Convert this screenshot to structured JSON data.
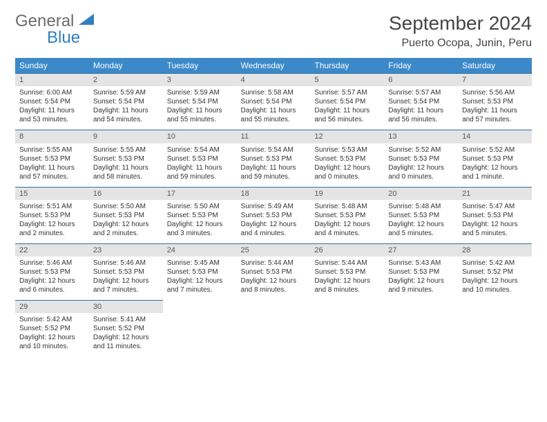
{
  "brand": {
    "line1": "General",
    "line2": "Blue"
  },
  "title": "September 2024",
  "location": "Puerto Ocopa, Junin, Peru",
  "colors": {
    "header_bg": "#3b89c9",
    "header_text": "#ffffff",
    "daynum_bg": "#e4e4e4",
    "row_divider": "#2f6fa0",
    "logo_gray": "#6b6b6b",
    "logo_blue": "#2f7fbf",
    "text": "#333333",
    "background": "#ffffff"
  },
  "typography": {
    "month_title_fontsize": 28,
    "location_fontsize": 16,
    "weekday_fontsize": 12,
    "daynum_fontsize": 11,
    "body_fontsize": 10
  },
  "weekdays": [
    "Sunday",
    "Monday",
    "Tuesday",
    "Wednesday",
    "Thursday",
    "Friday",
    "Saturday"
  ],
  "weeks": [
    [
      {
        "day": "1",
        "sunrise": "Sunrise: 6:00 AM",
        "sunset": "Sunset: 5:54 PM",
        "daylight1": "Daylight: 11 hours",
        "daylight2": "and 53 minutes."
      },
      {
        "day": "2",
        "sunrise": "Sunrise: 5:59 AM",
        "sunset": "Sunset: 5:54 PM",
        "daylight1": "Daylight: 11 hours",
        "daylight2": "and 54 minutes."
      },
      {
        "day": "3",
        "sunrise": "Sunrise: 5:59 AM",
        "sunset": "Sunset: 5:54 PM",
        "daylight1": "Daylight: 11 hours",
        "daylight2": "and 55 minutes."
      },
      {
        "day": "4",
        "sunrise": "Sunrise: 5:58 AM",
        "sunset": "Sunset: 5:54 PM",
        "daylight1": "Daylight: 11 hours",
        "daylight2": "and 55 minutes."
      },
      {
        "day": "5",
        "sunrise": "Sunrise: 5:57 AM",
        "sunset": "Sunset: 5:54 PM",
        "daylight1": "Daylight: 11 hours",
        "daylight2": "and 56 minutes."
      },
      {
        "day": "6",
        "sunrise": "Sunrise: 5:57 AM",
        "sunset": "Sunset: 5:54 PM",
        "daylight1": "Daylight: 11 hours",
        "daylight2": "and 56 minutes."
      },
      {
        "day": "7",
        "sunrise": "Sunrise: 5:56 AM",
        "sunset": "Sunset: 5:53 PM",
        "daylight1": "Daylight: 11 hours",
        "daylight2": "and 57 minutes."
      }
    ],
    [
      {
        "day": "8",
        "sunrise": "Sunrise: 5:55 AM",
        "sunset": "Sunset: 5:53 PM",
        "daylight1": "Daylight: 11 hours",
        "daylight2": "and 57 minutes."
      },
      {
        "day": "9",
        "sunrise": "Sunrise: 5:55 AM",
        "sunset": "Sunset: 5:53 PM",
        "daylight1": "Daylight: 11 hours",
        "daylight2": "and 58 minutes."
      },
      {
        "day": "10",
        "sunrise": "Sunrise: 5:54 AM",
        "sunset": "Sunset: 5:53 PM",
        "daylight1": "Daylight: 11 hours",
        "daylight2": "and 59 minutes."
      },
      {
        "day": "11",
        "sunrise": "Sunrise: 5:54 AM",
        "sunset": "Sunset: 5:53 PM",
        "daylight1": "Daylight: 11 hours",
        "daylight2": "and 59 minutes."
      },
      {
        "day": "12",
        "sunrise": "Sunrise: 5:53 AM",
        "sunset": "Sunset: 5:53 PM",
        "daylight1": "Daylight: 12 hours",
        "daylight2": "and 0 minutes."
      },
      {
        "day": "13",
        "sunrise": "Sunrise: 5:52 AM",
        "sunset": "Sunset: 5:53 PM",
        "daylight1": "Daylight: 12 hours",
        "daylight2": "and 0 minutes."
      },
      {
        "day": "14",
        "sunrise": "Sunrise: 5:52 AM",
        "sunset": "Sunset: 5:53 PM",
        "daylight1": "Daylight: 12 hours",
        "daylight2": "and 1 minute."
      }
    ],
    [
      {
        "day": "15",
        "sunrise": "Sunrise: 5:51 AM",
        "sunset": "Sunset: 5:53 PM",
        "daylight1": "Daylight: 12 hours",
        "daylight2": "and 2 minutes."
      },
      {
        "day": "16",
        "sunrise": "Sunrise: 5:50 AM",
        "sunset": "Sunset: 5:53 PM",
        "daylight1": "Daylight: 12 hours",
        "daylight2": "and 2 minutes."
      },
      {
        "day": "17",
        "sunrise": "Sunrise: 5:50 AM",
        "sunset": "Sunset: 5:53 PM",
        "daylight1": "Daylight: 12 hours",
        "daylight2": "and 3 minutes."
      },
      {
        "day": "18",
        "sunrise": "Sunrise: 5:49 AM",
        "sunset": "Sunset: 5:53 PM",
        "daylight1": "Daylight: 12 hours",
        "daylight2": "and 4 minutes."
      },
      {
        "day": "19",
        "sunrise": "Sunrise: 5:48 AM",
        "sunset": "Sunset: 5:53 PM",
        "daylight1": "Daylight: 12 hours",
        "daylight2": "and 4 minutes."
      },
      {
        "day": "20",
        "sunrise": "Sunrise: 5:48 AM",
        "sunset": "Sunset: 5:53 PM",
        "daylight1": "Daylight: 12 hours",
        "daylight2": "and 5 minutes."
      },
      {
        "day": "21",
        "sunrise": "Sunrise: 5:47 AM",
        "sunset": "Sunset: 5:53 PM",
        "daylight1": "Daylight: 12 hours",
        "daylight2": "and 5 minutes."
      }
    ],
    [
      {
        "day": "22",
        "sunrise": "Sunrise: 5:46 AM",
        "sunset": "Sunset: 5:53 PM",
        "daylight1": "Daylight: 12 hours",
        "daylight2": "and 6 minutes."
      },
      {
        "day": "23",
        "sunrise": "Sunrise: 5:46 AM",
        "sunset": "Sunset: 5:53 PM",
        "daylight1": "Daylight: 12 hours",
        "daylight2": "and 7 minutes."
      },
      {
        "day": "24",
        "sunrise": "Sunrise: 5:45 AM",
        "sunset": "Sunset: 5:53 PM",
        "daylight1": "Daylight: 12 hours",
        "daylight2": "and 7 minutes."
      },
      {
        "day": "25",
        "sunrise": "Sunrise: 5:44 AM",
        "sunset": "Sunset: 5:53 PM",
        "daylight1": "Daylight: 12 hours",
        "daylight2": "and 8 minutes."
      },
      {
        "day": "26",
        "sunrise": "Sunrise: 5:44 AM",
        "sunset": "Sunset: 5:53 PM",
        "daylight1": "Daylight: 12 hours",
        "daylight2": "and 8 minutes."
      },
      {
        "day": "27",
        "sunrise": "Sunrise: 5:43 AM",
        "sunset": "Sunset: 5:53 PM",
        "daylight1": "Daylight: 12 hours",
        "daylight2": "and 9 minutes."
      },
      {
        "day": "28",
        "sunrise": "Sunrise: 5:42 AM",
        "sunset": "Sunset: 5:52 PM",
        "daylight1": "Daylight: 12 hours",
        "daylight2": "and 10 minutes."
      }
    ],
    [
      {
        "day": "29",
        "sunrise": "Sunrise: 5:42 AM",
        "sunset": "Sunset: 5:52 PM",
        "daylight1": "Daylight: 12 hours",
        "daylight2": "and 10 minutes."
      },
      {
        "day": "30",
        "sunrise": "Sunrise: 5:41 AM",
        "sunset": "Sunset: 5:52 PM",
        "daylight1": "Daylight: 12 hours",
        "daylight2": "and 11 minutes."
      },
      null,
      null,
      null,
      null,
      null
    ]
  ]
}
